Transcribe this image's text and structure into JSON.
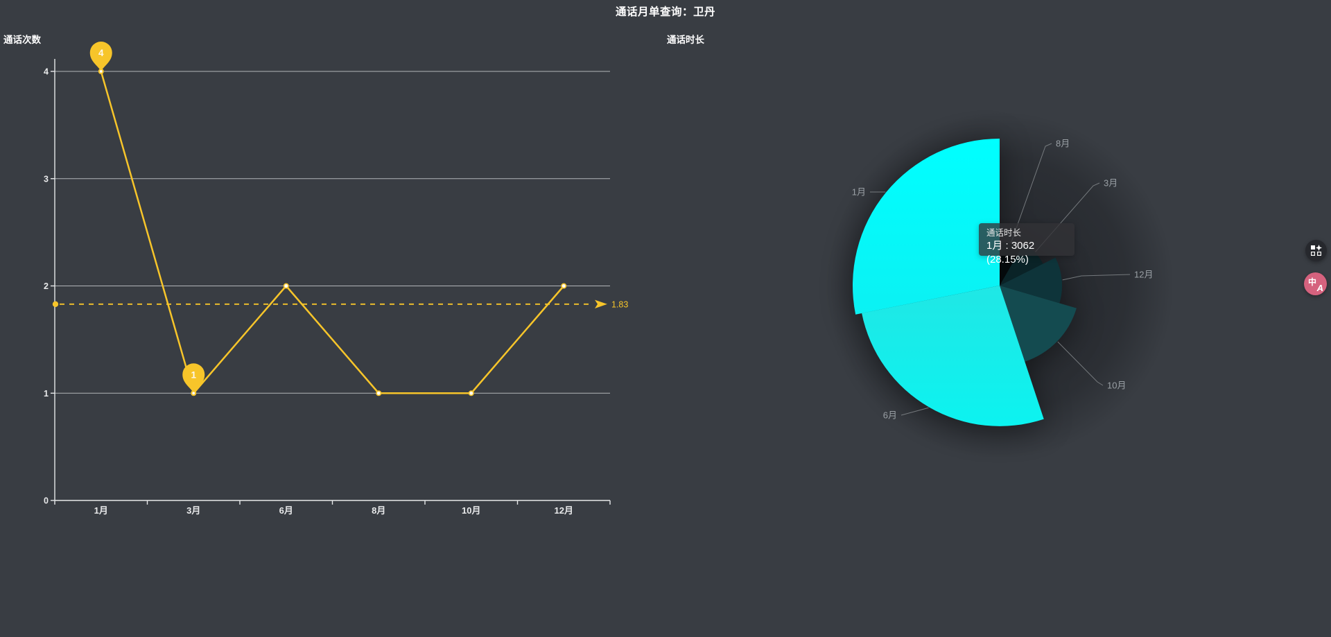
{
  "page": {
    "title": "通话月单查询：卫丹",
    "background": "#393d43"
  },
  "chart_data": [
    {
      "type": "line",
      "title": "通话次数",
      "categories": [
        "1月",
        "3月",
        "6月",
        "8月",
        "10月",
        "12月"
      ],
      "values": [
        4,
        1,
        2,
        1,
        1,
        2
      ],
      "ylim": [
        0,
        4
      ],
      "y_ticks": [
        "0",
        "1",
        "2",
        "3",
        "4"
      ],
      "grid": true,
      "legend_position": "none",
      "line_color": "#f7c52a",
      "average_line": {
        "value": 1.83,
        "label": "1.83"
      },
      "mark_max": {
        "category": "1月",
        "value": 4,
        "label": "4"
      },
      "mark_min": {
        "category": "3月",
        "value": 1,
        "label": "1"
      }
    },
    {
      "type": "pie",
      "title": "通话时长",
      "rose": true,
      "start_angle": 90,
      "direction": "clockwise",
      "slices": [
        {
          "label": "8月",
          "value": 905,
          "color": "#04090b"
        },
        {
          "label": "3月",
          "value": 1010,
          "color": "#0a2327"
        },
        {
          "label": "12月",
          "value": 1300,
          "color": "#0e343a"
        },
        {
          "label": "10月",
          "value": 1670,
          "color": "#144b50"
        },
        {
          "label": "6月",
          "value": 2930,
          "color": "#20e7e5",
          "color2": "#0cf3f0"
        },
        {
          "label": "1月",
          "value": 3062,
          "color": "#00ffff",
          "color2": "#0bf1f3"
        }
      ],
      "hovered_slice": {
        "name": "1月",
        "value": 3062,
        "percent": "28.15%"
      }
    }
  ],
  "tooltip": {
    "title": "通话时长",
    "line": "1月 : 3062 (28.15%)"
  },
  "floating_buttons": {
    "extension": {
      "icon": "apps-sparkle-icon"
    },
    "translate": {
      "icon": "translate-icon",
      "glyph_primary": "中",
      "glyph_secondary": "A",
      "color": "#d5627e"
    }
  }
}
